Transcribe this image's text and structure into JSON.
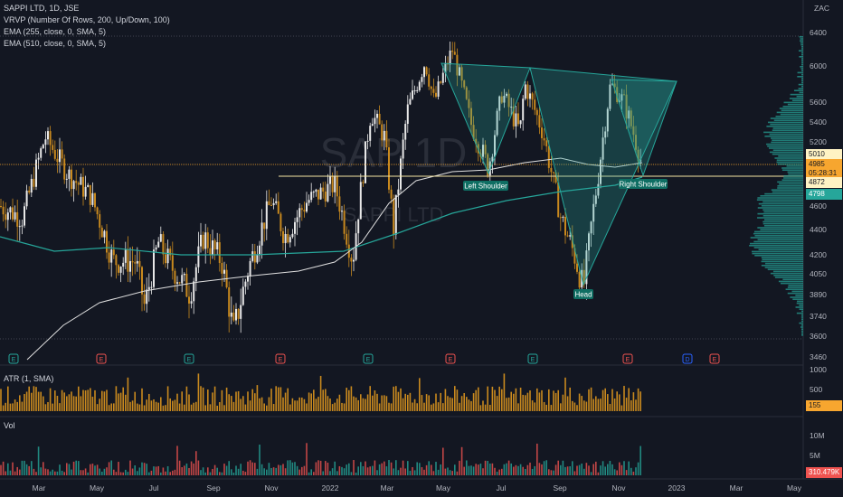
{
  "header": {
    "symbol_line": "SAPPI LTD, 1D, JSE",
    "indicators": [
      "VRVP (Number Of Rows, 200, Up/Down, 100)",
      "EMA (255, close, 0, SMA, 5)",
      "EMA (510, close, 0, SMA, 5)"
    ],
    "watermark_symbol": "SAP 1D",
    "watermark_name": "SAPPI LTD",
    "currency": "ZAC"
  },
  "chart_data": {
    "type": "candlestick",
    "x_axis_labels": [
      "Mar",
      "May",
      "Jul",
      "Sep",
      "Nov",
      "2022",
      "Mar",
      "May",
      "Jul",
      "Sep",
      "Nov",
      "2023",
      "Mar",
      "May"
    ],
    "price_axis_ticks": [
      6400,
      6000,
      5600,
      5400,
      5200,
      4600,
      4400,
      4200,
      4050,
      3890,
      3740,
      3600,
      3460
    ],
    "price_tags": {
      "high_level": "5010",
      "last_price": "4985",
      "countdown": "05:28:31",
      "ema_255": "4872",
      "ema_510": "4798"
    },
    "levels": {
      "horizontal_lines": [
        4985,
        4872
      ]
    },
    "ylim": [
      3420,
      6500
    ],
    "pattern": {
      "name": "Inverse Head and Shoulders (annotated)",
      "labels": [
        "Left Shoulder",
        "Head",
        "Right Shoulder"
      ]
    },
    "event_markers": [
      "E",
      "E",
      "E",
      "E",
      "E",
      "E",
      "E",
      "E",
      "E",
      "D",
      "E"
    ],
    "atr": {
      "label": "ATR (1, SMA)",
      "ticks": [
        1000,
        500
      ],
      "last_value": "155"
    },
    "volume": {
      "label": "Vol",
      "ticks": [
        "10M",
        "5M"
      ],
      "last_value": "310.479K"
    }
  }
}
